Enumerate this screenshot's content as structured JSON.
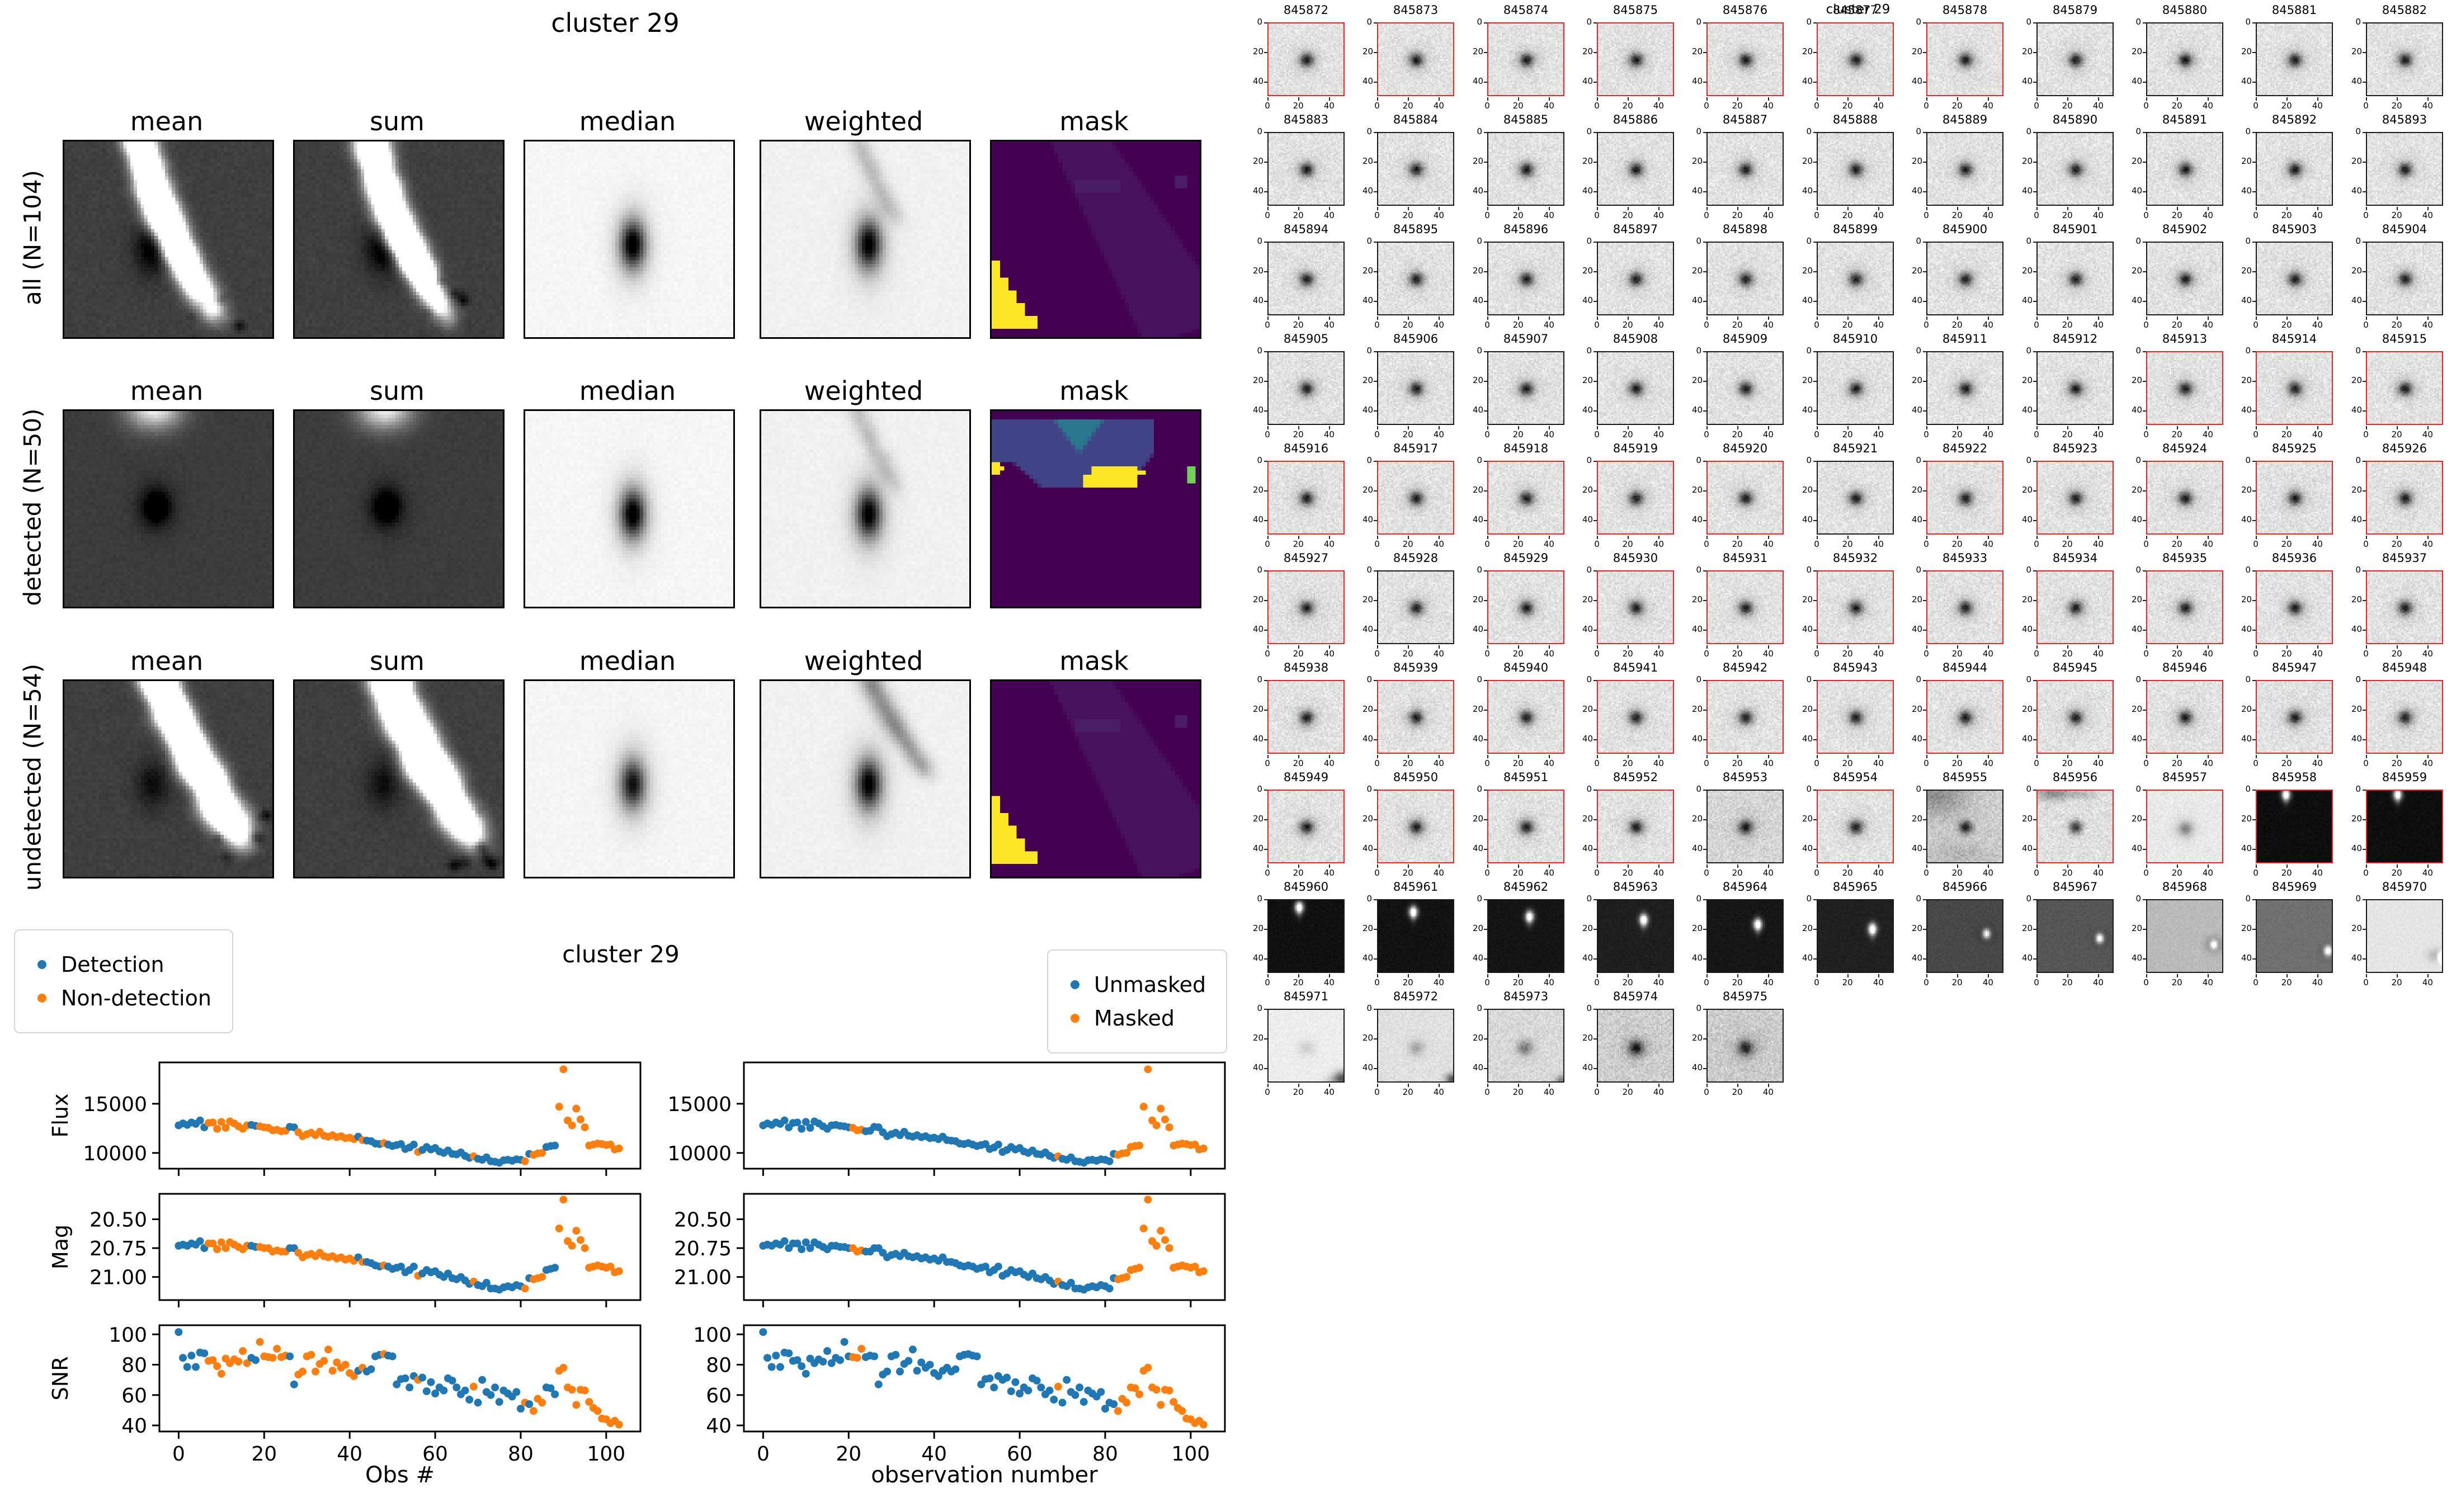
{
  "page": {
    "background": "#ffffff"
  },
  "colors": {
    "detection": "#1f77b4",
    "nondetection": "#ff7f0e",
    "unmasked": "#1f77b4",
    "masked": "#ff7f0e",
    "red_border": "#ee2222",
    "black_border": "#1a1a1a",
    "mask_purple": "#440154",
    "mask_blue": "#414487",
    "mask_teal": "#2a788e",
    "mask_green": "#73d056",
    "mask_yellow": "#fde725"
  },
  "left_figure": {
    "title": "cluster 29",
    "columns": [
      "mean",
      "sum",
      "median",
      "weighted",
      "mask"
    ],
    "rows": [
      {
        "label": "all (N=104)"
      },
      {
        "label": "detected (N=50)"
      },
      {
        "label": "undetected (N=54)"
      }
    ]
  },
  "scatter_figure": {
    "title": "cluster 29",
    "ylabels": [
      "Flux",
      "Mag",
      "SNR"
    ],
    "left": {
      "xlabel": "Obs #",
      "legend": [
        "Detection",
        "Non-detection"
      ]
    },
    "right": {
      "xlabel": "observation number",
      "legend": [
        "Unmasked",
        "Masked"
      ]
    }
  },
  "cutout_grid": {
    "suptitle": "cluster 29",
    "x_ticks": [
      0,
      20,
      40
    ],
    "y_ticks": [
      0,
      20,
      40
    ],
    "cutouts": [
      {
        "id": 845872,
        "red": 1
      },
      {
        "id": 845873,
        "red": 1
      },
      {
        "id": 845874,
        "red": 1
      },
      {
        "id": 845875,
        "red": 1
      },
      {
        "id": 845876,
        "red": 1
      },
      {
        "id": 845877,
        "red": 1
      },
      {
        "id": 845878,
        "red": 1
      },
      {
        "id": 845879,
        "red": 0
      },
      {
        "id": 845880,
        "red": 0
      },
      {
        "id": 845881,
        "red": 0
      },
      {
        "id": 845882,
        "red": 0
      },
      {
        "id": 845883,
        "red": 0
      },
      {
        "id": 845884,
        "red": 0
      },
      {
        "id": 845885,
        "red": 0
      },
      {
        "id": 845886,
        "red": 0
      },
      {
        "id": 845887,
        "red": 0
      },
      {
        "id": 845888,
        "red": 0
      },
      {
        "id": 845889,
        "red": 0
      },
      {
        "id": 845890,
        "red": 0
      },
      {
        "id": 845891,
        "red": 0
      },
      {
        "id": 845892,
        "red": 0
      },
      {
        "id": 845893,
        "red": 0
      },
      {
        "id": 845894,
        "red": 0
      },
      {
        "id": 845895,
        "red": 0
      },
      {
        "id": 845896,
        "red": 0
      },
      {
        "id": 845897,
        "red": 0
      },
      {
        "id": 845898,
        "red": 0
      },
      {
        "id": 845899,
        "red": 0
      },
      {
        "id": 845900,
        "red": 0
      },
      {
        "id": 845901,
        "red": 0
      },
      {
        "id": 845902,
        "red": 0
      },
      {
        "id": 845903,
        "red": 0
      },
      {
        "id": 845904,
        "red": 0
      },
      {
        "id": 845905,
        "red": 0
      },
      {
        "id": 845906,
        "red": 0
      },
      {
        "id": 845907,
        "red": 0
      },
      {
        "id": 845908,
        "red": 0
      },
      {
        "id": 845909,
        "red": 0
      },
      {
        "id": 845910,
        "red": 0
      },
      {
        "id": 845911,
        "red": 0
      },
      {
        "id": 845912,
        "red": 0
      },
      {
        "id": 845913,
        "red": 1
      },
      {
        "id": 845914,
        "red": 1
      },
      {
        "id": 845915,
        "red": 1
      },
      {
        "id": 845916,
        "red": 1
      },
      {
        "id": 845917,
        "red": 1
      },
      {
        "id": 845918,
        "red": 1
      },
      {
        "id": 845919,
        "red": 1
      },
      {
        "id": 845920,
        "red": 1
      },
      {
        "id": 845921,
        "red": 0
      },
      {
        "id": 845922,
        "red": 1
      },
      {
        "id": 845923,
        "red": 1
      },
      {
        "id": 845924,
        "red": 1
      },
      {
        "id": 845925,
        "red": 1
      },
      {
        "id": 845926,
        "red": 1
      },
      {
        "id": 845927,
        "red": 1
      },
      {
        "id": 845928,
        "red": 0
      },
      {
        "id": 845929,
        "red": 1
      },
      {
        "id": 845930,
        "red": 1
      },
      {
        "id": 845931,
        "red": 1
      },
      {
        "id": 845932,
        "red": 1
      },
      {
        "id": 845933,
        "red": 1
      },
      {
        "id": 845934,
        "red": 1
      },
      {
        "id": 845935,
        "red": 1
      },
      {
        "id": 845936,
        "red": 1
      },
      {
        "id": 845937,
        "red": 1
      },
      {
        "id": 845938,
        "red": 1
      },
      {
        "id": 845939,
        "red": 1
      },
      {
        "id": 845940,
        "red": 1
      },
      {
        "id": 845941,
        "red": 1
      },
      {
        "id": 845942,
        "red": 1
      },
      {
        "id": 845943,
        "red": 1
      },
      {
        "id": 845944,
        "red": 1
      },
      {
        "id": 845945,
        "red": 1
      },
      {
        "id": 845946,
        "red": 1
      },
      {
        "id": 845947,
        "red": 1
      },
      {
        "id": 845948,
        "red": 1
      },
      {
        "id": 845949,
        "red": 1
      },
      {
        "id": 845950,
        "red": 1
      },
      {
        "id": 845951,
        "red": 1
      },
      {
        "id": 845952,
        "red": 1
      },
      {
        "id": 845953,
        "red": 0,
        "k": "n2"
      },
      {
        "id": 845954,
        "red": 1
      },
      {
        "id": 845955,
        "red": 0,
        "k": "n3"
      },
      {
        "id": 845956,
        "red": 1,
        "k": "nsm"
      },
      {
        "id": 845957,
        "red": 1,
        "k": "nf"
      },
      {
        "id": 845958,
        "red": 1,
        "k": "blk",
        "p": [
          19,
          2
        ],
        "bg": 14
      },
      {
        "id": 845959,
        "red": 1,
        "k": "blk",
        "p": [
          20,
          2
        ],
        "bg": 14
      },
      {
        "id": 845960,
        "red": 0,
        "k": "blk",
        "p": [
          20,
          4
        ],
        "bg": 16
      },
      {
        "id": 845961,
        "red": 0,
        "k": "blk",
        "p": [
          23,
          7
        ],
        "bg": 18
      },
      {
        "id": 845962,
        "red": 0,
        "k": "blk",
        "p": [
          27,
          10
        ],
        "bg": 20
      },
      {
        "id": 845963,
        "red": 0,
        "k": "blk",
        "p": [
          30,
          12
        ],
        "bg": 30
      },
      {
        "id": 845964,
        "red": 0,
        "k": "blk",
        "p": [
          33,
          15
        ],
        "bg": 22
      },
      {
        "id": 845965,
        "red": 0,
        "k": "blk",
        "p": [
          36,
          18
        ],
        "bg": 32
      },
      {
        "id": 845966,
        "red": 0,
        "k": "g",
        "p": [
          39,
          21
        ],
        "bg": 72
      },
      {
        "id": 845967,
        "red": 0,
        "k": "g",
        "p": [
          41,
          24
        ],
        "bg": 86
      },
      {
        "id": 845968,
        "red": 0,
        "k": "lg",
        "p": [
          44,
          28
        ],
        "bg": 186
      },
      {
        "id": 845969,
        "red": 0,
        "k": "g",
        "p": [
          47,
          32
        ],
        "bg": 112
      },
      {
        "id": 845970,
        "red": 0,
        "k": "vl",
        "p": [
          50,
          36
        ],
        "bg": 229
      },
      {
        "id": 845971,
        "red": 0,
        "k": "nf2"
      },
      {
        "id": 845972,
        "red": 0,
        "k": "nf3"
      },
      {
        "id": 845973,
        "red": 0,
        "k": "nz"
      },
      {
        "id": 845974,
        "red": 0,
        "k": "nz2"
      },
      {
        "id": 845975,
        "red": 0,
        "k": "nz3"
      }
    ]
  },
  "chart_data": [
    {
      "id": "flux",
      "type": "scatter",
      "title": "cluster 29",
      "ylabel": "Flux",
      "yticks": [
        15000,
        10000
      ],
      "ylim": [
        8400,
        19200
      ],
      "xlim": [
        -4.5,
        108
      ],
      "xticks": [
        0,
        20,
        40,
        60,
        80,
        100
      ],
      "values": [
        12800,
        13000,
        12850,
        13100,
        12950,
        13300,
        12600,
        13050,
        13100,
        12450,
        13150,
        12550,
        13200,
        13000,
        12700,
        12450,
        12800,
        12850,
        12750,
        12700,
        12600,
        12550,
        12300,
        12350,
        12200,
        12250,
        12650,
        12600,
        12100,
        11700,
        11900,
        12050,
        11800,
        12150,
        11750,
        11650,
        11800,
        11600,
        11700,
        11500,
        11550,
        11400,
        11650,
        11300,
        11250,
        11200,
        10950,
        10900,
        11000,
        10850,
        10700,
        10800,
        10900,
        10400,
        10550,
        10850,
        10100,
        10300,
        10600,
        10350,
        10500,
        10150,
        10000,
        10250,
        9900,
        9850,
        10050,
        9700,
        9500,
        9650,
        9400,
        9300,
        9550,
        9150,
        9100,
        9000,
        9250,
        9300,
        9200,
        9350,
        9300,
        9150,
        9900,
        9800,
        9950,
        10000,
        10600,
        10700,
        10750,
        14700,
        18500,
        13300,
        12800,
        14500,
        13400,
        12600,
        10750,
        10850,
        10950,
        10900,
        10800,
        10850,
        10350,
        10450
      ]
    },
    {
      "id": "mag",
      "type": "scatter",
      "ylabel": "Mag",
      "yticks": [
        20.5,
        20.75,
        21.0
      ],
      "ylim": [
        21.2,
        20.28
      ],
      "inverted": true,
      "values": [
        20.73,
        20.72,
        20.73,
        20.71,
        20.72,
        20.69,
        20.75,
        20.71,
        20.71,
        20.76,
        20.7,
        20.75,
        20.7,
        20.72,
        20.74,
        20.76,
        20.73,
        20.73,
        20.74,
        20.74,
        20.75,
        20.75,
        20.78,
        20.77,
        20.78,
        20.78,
        20.75,
        20.75,
        20.79,
        20.83,
        20.81,
        20.8,
        20.82,
        20.79,
        20.82,
        20.83,
        20.82,
        20.84,
        20.83,
        20.85,
        20.84,
        20.86,
        20.83,
        20.87,
        20.87,
        20.88,
        20.9,
        20.91,
        20.9,
        20.91,
        20.93,
        20.92,
        20.91,
        20.96,
        20.94,
        20.91,
        20.99,
        20.97,
        20.94,
        20.96,
        20.95,
        20.98,
        21.0,
        20.97,
        21.01,
        21.02,
        21.0,
        21.03,
        21.06,
        21.04,
        21.07,
        21.08,
        21.05,
        21.1,
        21.1,
        21.11,
        21.09,
        21.08,
        21.09,
        21.07,
        21.08,
        21.1,
        21.01,
        21.02,
        21.01,
        21.0,
        20.94,
        20.93,
        20.92,
        20.58,
        20.33,
        20.69,
        20.73,
        20.6,
        20.68,
        20.75,
        20.92,
        20.91,
        20.9,
        20.91,
        20.92,
        20.91,
        20.96,
        20.95
      ]
    },
    {
      "id": "snr",
      "type": "scatter",
      "ylabel": "SNR",
      "yticks": [
        100,
        80,
        60,
        40
      ],
      "ylim": [
        36,
        106
      ],
      "xlabel_left": "Obs #",
      "xlabel_right": "observation number",
      "values": [
        101.5,
        84.5,
        78.5,
        86,
        78.5,
        88,
        87.5,
        82.5,
        83,
        79,
        74,
        84,
        81,
        83.5,
        82,
        89,
        81,
        84.5,
        83,
        95,
        85.5,
        85,
        84.5,
        90.5,
        85,
        86,
        85.5,
        67,
        73.5,
        75.5,
        85.5,
        86.5,
        75.5,
        80.5,
        82.5,
        90,
        76,
        81.5,
        78,
        80,
        74.5,
        72.5,
        76,
        78,
        75.5,
        77,
        85.5,
        86.5,
        87,
        86,
        85.5,
        67,
        70.5,
        71,
        65,
        72.5,
        70,
        71.5,
        62.5,
        68.5,
        61,
        65,
        63,
        71,
        69.5,
        65,
        60.5,
        63,
        57,
        65.5,
        55,
        70,
        62,
        60,
        65,
        55.5,
        63,
        61,
        59,
        62,
        51,
        55,
        54,
        49.5,
        57.5,
        55,
        65,
        64.5,
        60.5,
        76,
        78,
        65,
        63.5,
        53.5,
        63.5,
        63,
        55.5,
        51.5,
        49.5,
        44.5,
        44,
        41.5,
        43,
        40.5
      ]
    },
    {
      "id": "flags",
      "legend_left": [
        "Detection",
        "Non-detection"
      ],
      "legend_right": [
        "Unmasked",
        "Masked"
      ],
      "detected": [
        1,
        1,
        1,
        1,
        1,
        1,
        1,
        0,
        0,
        0,
        0,
        0,
        0,
        0,
        0,
        0,
        0,
        1,
        1,
        0,
        0,
        0,
        0,
        0,
        0,
        0,
        1,
        1,
        0,
        0,
        0,
        0,
        0,
        0,
        0,
        0,
        0,
        0,
        0,
        0,
        0,
        0,
        1,
        0,
        1,
        1,
        1,
        1,
        0,
        1,
        1,
        1,
        1,
        1,
        1,
        1,
        0,
        1,
        1,
        1,
        1,
        1,
        1,
        1,
        1,
        1,
        1,
        1,
        1,
        0,
        1,
        1,
        1,
        1,
        1,
        1,
        1,
        1,
        1,
        1,
        1,
        0,
        1,
        0,
        0,
        0,
        1,
        1,
        1,
        0,
        0,
        0,
        0,
        0,
        0,
        0,
        0,
        0,
        0,
        0,
        0,
        0,
        0,
        0
      ],
      "masked": [
        0,
        0,
        0,
        0,
        0,
        0,
        0,
        0,
        0,
        0,
        0,
        0,
        0,
        0,
        0,
        0,
        0,
        0,
        0,
        0,
        0,
        1,
        1,
        1,
        0,
        0,
        0,
        0,
        0,
        0,
        0,
        0,
        0,
        0,
        0,
        0,
        0,
        0,
        0,
        0,
        0,
        0,
        0,
        0,
        0,
        0,
        0,
        0,
        0,
        0,
        0,
        0,
        0,
        0,
        0,
        0,
        0,
        0,
        0,
        0,
        0,
        0,
        0,
        0,
        0,
        0,
        0,
        0,
        0,
        1,
        0,
        0,
        0,
        0,
        0,
        0,
        0,
        0,
        0,
        0,
        0,
        0,
        0,
        1,
        1,
        1,
        1,
        1,
        1,
        1,
        1,
        1,
        1,
        1,
        1,
        1,
        1,
        1,
        1,
        1,
        1,
        1,
        1,
        1
      ]
    }
  ]
}
